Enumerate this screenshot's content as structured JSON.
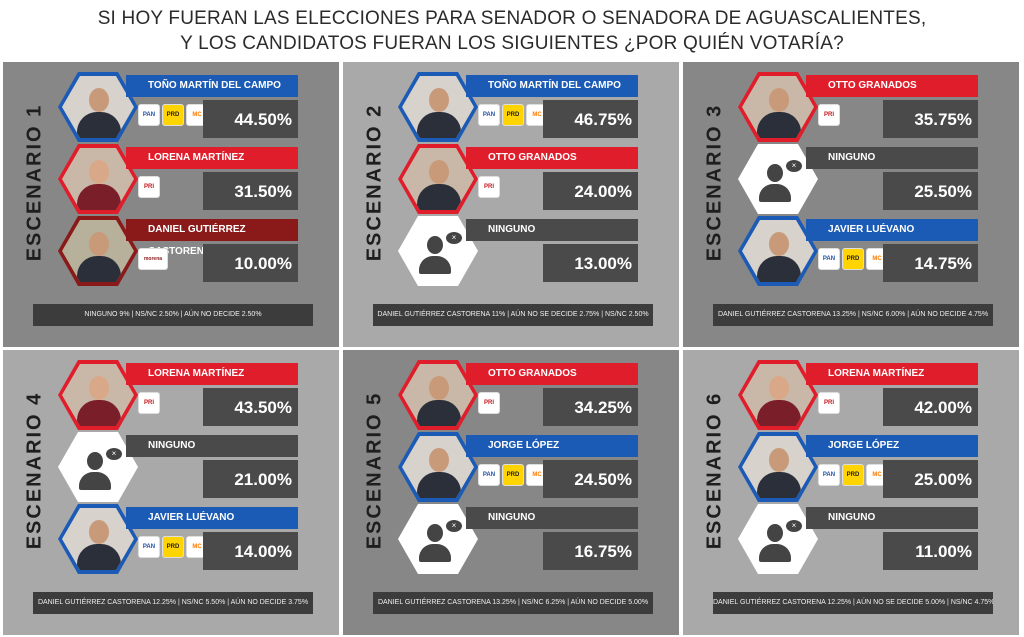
{
  "title": {
    "line1": "SI HOY FUERAN LAS ELECCIONES PARA SENADOR O SENADORA DE AGUASCALIENTES,",
    "line2": "Y LOS CANDIDATOS FUERAN LOS SIGUIENTES   ¿POR QUIÉN VOTARÍA?"
  },
  "colors": {
    "blue": "#1c5bb5",
    "red": "#e01e2b",
    "dark_red": "#8a1a1a",
    "gray": "#4a4a4a"
  },
  "party_labels": {
    "pan": "PAN",
    "prd": "PRD",
    "mc": "MC",
    "pri": "PRI",
    "morena": "morena"
  },
  "chart_data": [
    {
      "type": "table",
      "title": "ESCENARIO 1",
      "candidates": [
        {
          "name": "TOÑO MARTÍN DEL CAMPO",
          "value": 44.5,
          "pct": "44.50%",
          "color": "blue",
          "parties": [
            "pan",
            "prd",
            "mc"
          ]
        },
        {
          "name": "LORENA MARTÍNEZ",
          "value": 31.5,
          "pct": "31.50%",
          "color": "red",
          "parties": [
            "pri"
          ]
        },
        {
          "name": "DANIEL GUTIÉRREZ CASTORENA",
          "value": 10.0,
          "pct": "10.00%",
          "color": "dark_red",
          "parties": [
            "morena"
          ]
        }
      ],
      "footer": "NINGUNO 9%  |  NS/NC 2.50%  |  AÚN NO DECIDE 2.50%"
    },
    {
      "type": "table",
      "title": "ESCENARIO 2",
      "candidates": [
        {
          "name": "TOÑO MARTÍN DEL CAMPO",
          "value": 46.75,
          "pct": "46.75%",
          "color": "blue",
          "parties": [
            "pan",
            "prd",
            "mc"
          ]
        },
        {
          "name": "OTTO GRANADOS",
          "value": 24.0,
          "pct": "24.00%",
          "color": "red",
          "parties": [
            "pri"
          ]
        },
        {
          "name": "NINGUNO",
          "value": 13.0,
          "pct": "13.00%",
          "color": "gray",
          "parties": []
        }
      ],
      "footer": "DANIEL GUTIÉRREZ CASTORENA 11%  |  AÚN NO SE DECIDE 2.75%  |  NS/NC 2.50%"
    },
    {
      "type": "table",
      "title": "ESCENARIO 3",
      "candidates": [
        {
          "name": "OTTO GRANADOS",
          "value": 35.75,
          "pct": "35.75%",
          "color": "red",
          "parties": [
            "pri"
          ]
        },
        {
          "name": "NINGUNO",
          "value": 25.5,
          "pct": "25.50%",
          "color": "gray",
          "parties": []
        },
        {
          "name": "JAVIER LUÉVANO",
          "value": 14.75,
          "pct": "14.75%",
          "color": "blue",
          "parties": [
            "pan",
            "prd",
            "mc"
          ]
        }
      ],
      "footer": "DANIEL GUTIÉRREZ CASTORENA 13.25%  |  NS/NC 6.00%  |  AÚN NO DECIDE 4.75%"
    },
    {
      "type": "table",
      "title": "ESCENARIO 4",
      "candidates": [
        {
          "name": "LORENA MARTÍNEZ",
          "value": 43.5,
          "pct": "43.50%",
          "color": "red",
          "parties": [
            "pri"
          ]
        },
        {
          "name": "NINGUNO",
          "value": 21.0,
          "pct": "21.00%",
          "color": "gray",
          "parties": []
        },
        {
          "name": "JAVIER LUÉVANO",
          "value": 14.0,
          "pct": "14.00%",
          "color": "blue",
          "parties": [
            "pan",
            "prd",
            "mc"
          ]
        }
      ],
      "footer": "DANIEL GUTIÉRREZ CASTORENA 12.25%  |  NS/NC 5.50%  |  AÚN NO DECIDE 3.75%"
    },
    {
      "type": "table",
      "title": "ESCENARIO 5",
      "candidates": [
        {
          "name": "OTTO GRANADOS",
          "value": 34.25,
          "pct": "34.25%",
          "color": "red",
          "parties": [
            "pri"
          ]
        },
        {
          "name": "JORGE LÓPEZ",
          "value": 24.5,
          "pct": "24.50%",
          "color": "blue",
          "parties": [
            "pan",
            "prd",
            "mc"
          ]
        },
        {
          "name": "NINGUNO",
          "value": 16.75,
          "pct": "16.75%",
          "color": "gray",
          "parties": []
        }
      ],
      "footer": "DANIEL GUTIÉRREZ CASTORENA 13.25%  |  NS/NC 6.25%  |  AÚN NO DECIDE 5.00%"
    },
    {
      "type": "table",
      "title": "ESCENARIO 6",
      "candidates": [
        {
          "name": "LORENA MARTÍNEZ",
          "value": 42.0,
          "pct": "42.00%",
          "color": "red",
          "parties": [
            "pri"
          ]
        },
        {
          "name": "JORGE LÓPEZ",
          "value": 25.0,
          "pct": "25.00%",
          "color": "blue",
          "parties": [
            "pan",
            "prd",
            "mc"
          ]
        },
        {
          "name": "NINGUNO",
          "value": 11.0,
          "pct": "11.00%",
          "color": "gray",
          "parties": []
        }
      ],
      "footer": "DANIEL GUTIÉRREZ CASTORENA 12.25%  |  AÚN NO SE DECIDE 5.00%  |  NS/NC 4.75%"
    }
  ]
}
